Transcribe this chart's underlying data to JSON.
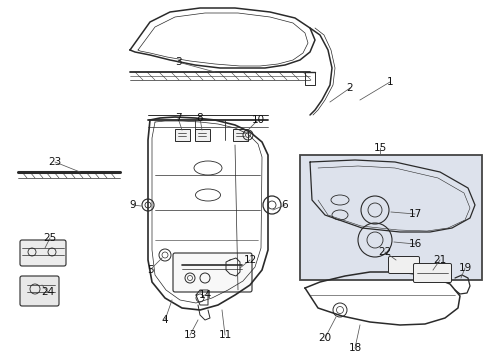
{
  "bg_color": "#ffffff",
  "line_color": "#2a2a2a",
  "label_color": "#111111",
  "leader_color": "#555555",
  "box_bg": "#dde2ec",
  "box_border": "#444444",
  "fig_width": 4.9,
  "fig_height": 3.6,
  "dpi": 100
}
